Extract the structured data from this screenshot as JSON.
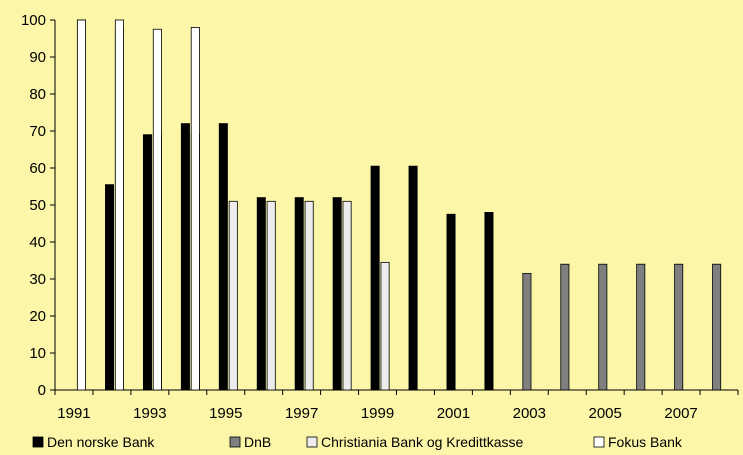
{
  "chart_data": {
    "type": "bar",
    "categories": [
      "1991",
      "1992",
      "1993",
      "1994",
      "1995",
      "1996",
      "1997",
      "1998",
      "1999",
      "2000",
      "2001",
      "2002",
      "2003",
      "2004",
      "2005",
      "2006",
      "2007",
      "2008"
    ],
    "x_tick_labels": [
      "1991",
      "1993",
      "1995",
      "1997",
      "1999",
      "2001",
      "2003",
      "2005",
      "2007"
    ],
    "y_tick_labels": [
      "0",
      "10",
      "20",
      "30",
      "40",
      "50",
      "60",
      "70",
      "80",
      "90",
      "100"
    ],
    "ylim": [
      0,
      100
    ],
    "grid": false,
    "legend_position": "bottom",
    "series": [
      {
        "name": "Den norske Bank",
        "color": "#000000",
        "values": [
          null,
          55.5,
          69,
          72,
          72,
          52,
          52,
          52,
          60.5,
          60.5,
          47.5,
          48,
          null,
          null,
          null,
          null,
          null,
          null
        ]
      },
      {
        "name": "DnB",
        "color": "#7F7F7F",
        "values": [
          null,
          null,
          null,
          null,
          null,
          null,
          null,
          null,
          null,
          null,
          null,
          null,
          31.5,
          34,
          34,
          34,
          34,
          34
        ]
      },
      {
        "name": "Christiania Bank og Kredittkasse",
        "color": "#ECECEC",
        "values": [
          100,
          97.5,
          69,
          69,
          51,
          51,
          51,
          51,
          34.5,
          null,
          null,
          null,
          null,
          null,
          null,
          null,
          null,
          null
        ]
      },
      {
        "name": "Fokus Bank",
        "color": "#FFFFFF",
        "values": [
          100,
          100,
          97.5,
          98,
          null,
          null,
          null,
          null,
          null,
          null,
          null,
          null,
          null,
          null,
          null,
          null,
          null,
          null
        ]
      }
    ]
  }
}
